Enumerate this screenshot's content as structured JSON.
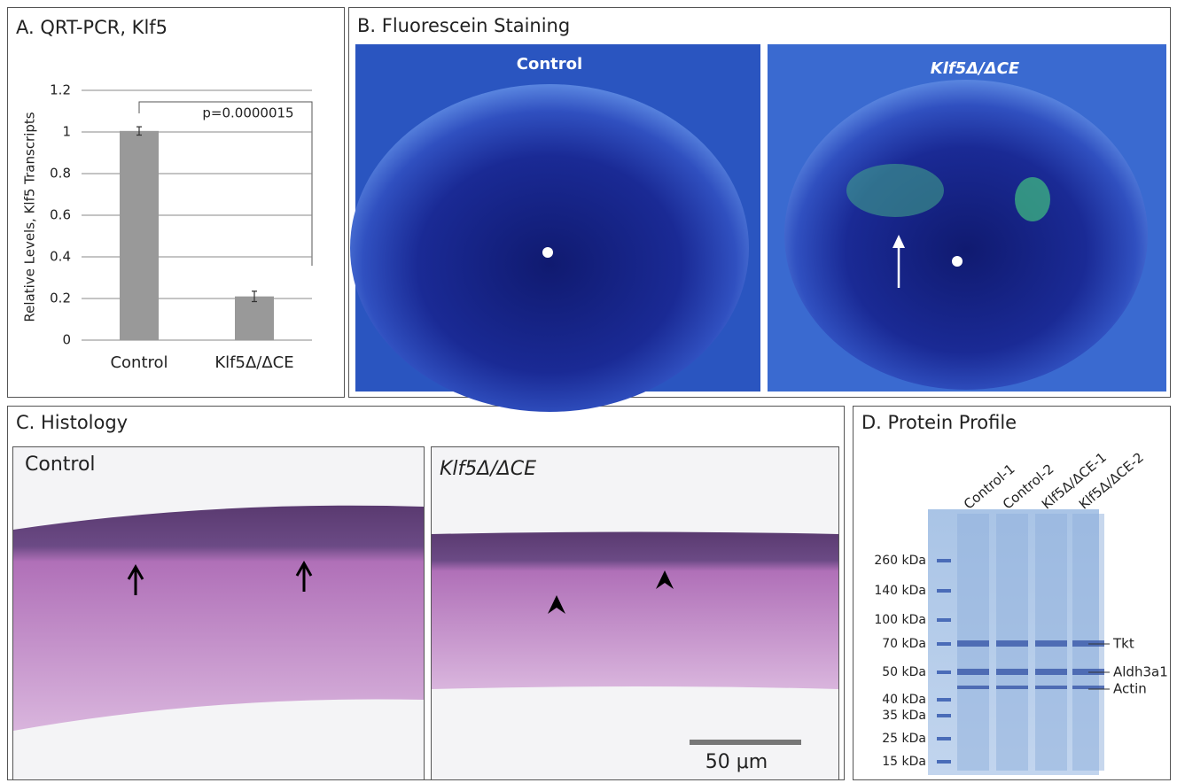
{
  "chart_data": {
    "type": "bar",
    "title": "A. QRT-PCR, Klf5",
    "y_label": "Relative Levels, Klf5 Transcripts",
    "categories": [
      "Control",
      "Klf5Δ/ΔCE"
    ],
    "values": [
      1.005,
      0.21
    ],
    "errors": [
      0.02,
      0.025
    ],
    "color": "#999999",
    "ylim": [
      0,
      1.2
    ],
    "yticks": [
      0,
      0.2,
      0.4,
      0.6,
      0.8,
      1,
      1.2
    ],
    "grid": true,
    "annotation": "p=0.0000015"
  },
  "panel_b": {
    "title": "B. Fluorescein Staining",
    "labels": [
      "Control",
      "Klf5Δ/ΔCE"
    ]
  },
  "panel_c": {
    "title": "C. Histology",
    "labels": [
      "Control",
      "Klf5Δ/ΔCE"
    ],
    "scale_bar": "50 μm"
  },
  "panel_d": {
    "title": "D. Protein Profile",
    "lanes": [
      "Control-1",
      "Control-2",
      "Klf5Δ/ΔCE-1",
      "Klf5Δ/ΔCE-2"
    ],
    "markers": [
      "260 kDa",
      "140 kDa",
      "100 kDa",
      "70 kDa",
      "50 kDa",
      "40 kDa",
      "35 kDa",
      "25 kDa",
      "15 kDa"
    ],
    "bands": [
      "Tkt",
      "Aldh3a1",
      "Actin"
    ]
  }
}
